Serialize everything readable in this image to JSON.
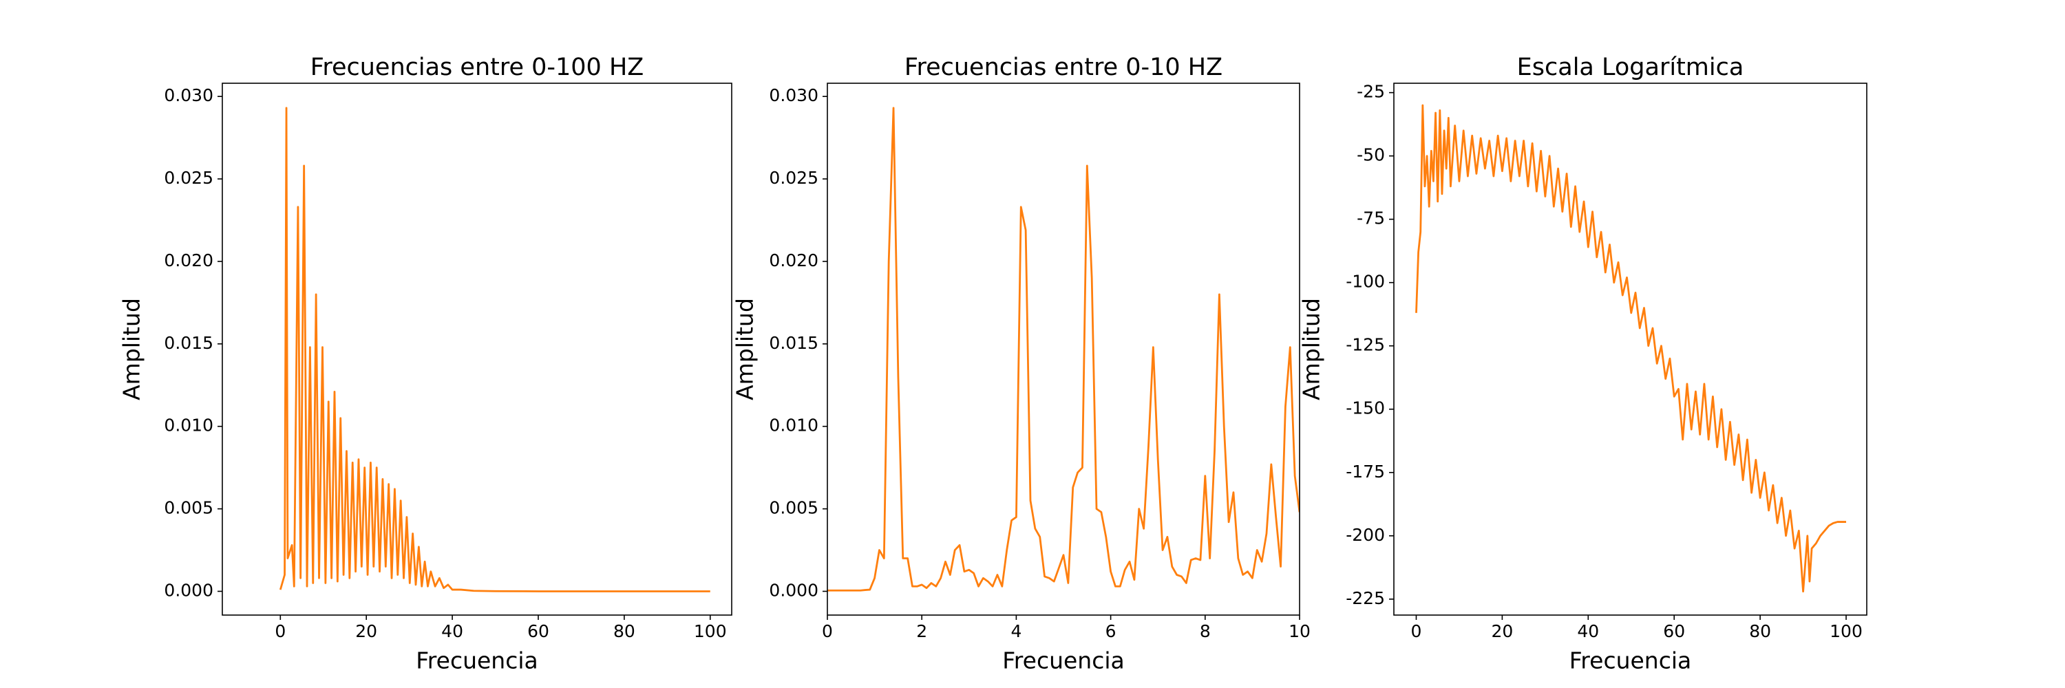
{
  "chart_data": [
    {
      "type": "line",
      "title": "Frecuencias entre 0-100 HZ",
      "x_label": "Frecuencia",
      "y_label": "Amplitud",
      "x": [
        0,
        1.0,
        1.4,
        1.7,
        2.7,
        3.2,
        4.1,
        4.7,
        5.5,
        6.2,
        6.9,
        7.6,
        8.3,
        9.0,
        9.8,
        10.5,
        11.2,
        11.9,
        12.6,
        13.3,
        14.0,
        14.7,
        15.4,
        16.1,
        16.8,
        17.5,
        18.2,
        18.9,
        19.6,
        20.3,
        21,
        21.7,
        22.4,
        23.1,
        23.8,
        24.5,
        25.2,
        25.9,
        26.6,
        27.3,
        28,
        28.7,
        29.4,
        30.1,
        30.8,
        31.5,
        32.2,
        32.9,
        33.6,
        34.3,
        35,
        36,
        37,
        38,
        39,
        40,
        42,
        45,
        50,
        60,
        80,
        100
      ],
      "series": [
        {
          "color": "#ff7f0e",
          "values": [
            0.0001,
            0.001,
            0.0293,
            0.002,
            0.0028,
            0.0003,
            0.0233,
            0.0008,
            0.0258,
            0.0003,
            0.0148,
            0.0005,
            0.018,
            0.0008,
            0.0148,
            0.0005,
            0.0115,
            0.0008,
            0.0121,
            0.0006,
            0.0105,
            0.001,
            0.0085,
            0.0008,
            0.0078,
            0.0012,
            0.008,
            0.0015,
            0.0075,
            0.001,
            0.0078,
            0.0015,
            0.0075,
            0.0012,
            0.0068,
            0.0015,
            0.0065,
            0.0008,
            0.0062,
            0.001,
            0.0055,
            0.0008,
            0.0045,
            0.0005,
            0.0035,
            0.0004,
            0.0027,
            0.0003,
            0.0018,
            0.0003,
            0.0012,
            0.0003,
            0.0008,
            0.0002,
            0.0004,
            0.0001,
            0.0001,
            3e-05,
            1e-05,
            0,
            0,
            0
          ]
        }
      ],
      "xlim": [
        -13.5,
        105
      ],
      "xticks": [
        0,
        20,
        40,
        60,
        80,
        100
      ],
      "ylim": [
        -0.00144,
        0.0308
      ],
      "yticks": [
        {
          "value": 0,
          "label": "0.000"
        },
        {
          "value": 0.005,
          "label": "0.005"
        },
        {
          "value": 0.01,
          "label": "0.010"
        },
        {
          "value": 0.015,
          "label": "0.015"
        },
        {
          "value": 0.02,
          "label": "0.020"
        },
        {
          "value": 0.025,
          "label": "0.025"
        },
        {
          "value": 0.03,
          "label": "0.030"
        }
      ]
    },
    {
      "type": "line",
      "title": "Frecuencias entre 0-10 HZ",
      "x_label": "Frecuencia",
      "y_label": "Amplitud",
      "x": [
        0,
        0.1,
        0.2,
        0.3,
        0.4,
        0.5,
        0.6,
        0.7,
        0.8,
        0.9,
        1.0,
        1.1,
        1.2,
        1.3,
        1.4,
        1.5,
        1.6,
        1.7,
        1.8,
        1.9,
        2.0,
        2.1,
        2.2,
        2.3,
        2.4,
        2.5,
        2.6,
        2.7,
        2.8,
        2.9,
        3.0,
        3.1,
        3.2,
        3.3,
        3.4,
        3.5,
        3.6,
        3.7,
        3.8,
        3.9,
        4.0,
        4.1,
        4.2,
        4.3,
        4.4,
        4.5,
        4.6,
        4.7,
        4.8,
        4.9,
        5.0,
        5.1,
        5.2,
        5.3,
        5.4,
        5.5,
        5.6,
        5.7,
        5.8,
        5.9,
        6.0,
        6.1,
        6.2,
        6.3,
        6.4,
        6.5,
        6.6,
        6.7,
        6.8,
        6.9,
        7.0,
        7.1,
        7.2,
        7.3,
        7.4,
        7.5,
        7.6,
        7.7,
        7.8,
        7.9,
        8.0,
        8.1,
        8.2,
        8.3,
        8.4,
        8.5,
        8.6,
        8.7,
        8.8,
        8.9,
        9.0,
        9.1,
        9.2,
        9.3,
        9.4,
        9.5,
        9.6,
        9.7,
        9.8,
        9.9,
        10.0
      ],
      "series": [
        {
          "color": "#ff7f0e",
          "values": [
            5e-05,
            5e-05,
            5e-05,
            5e-05,
            5e-05,
            5e-05,
            5e-05,
            5e-05,
            8e-05,
            0.0001,
            0.0008,
            0.0025,
            0.002,
            0.02,
            0.0293,
            0.013,
            0.002,
            0.002,
            0.0003,
            0.0003,
            0.0004,
            0.0002,
            0.0005,
            0.0003,
            0.0008,
            0.0018,
            0.001,
            0.0025,
            0.0028,
            0.0012,
            0.0013,
            0.0011,
            0.0003,
            0.0008,
            0.0006,
            0.0003,
            0.001,
            0.0003,
            0.0025,
            0.0043,
            0.0045,
            0.0233,
            0.0219,
            0.0055,
            0.0038,
            0.0033,
            0.0009,
            0.0008,
            0.0006,
            0.0014,
            0.0022,
            0.0005,
            0.0063,
            0.0072,
            0.0075,
            0.0258,
            0.019,
            0.005,
            0.0048,
            0.0033,
            0.0012,
            0.0003,
            0.0003,
            0.0013,
            0.0018,
            0.0007,
            0.005,
            0.0038,
            0.0088,
            0.0148,
            0.008,
            0.0025,
            0.0033,
            0.0015,
            0.001,
            0.0009,
            0.0005,
            0.0019,
            0.002,
            0.0019,
            0.007,
            0.002,
            0.0085,
            0.018,
            0.01,
            0.0042,
            0.006,
            0.002,
            0.001,
            0.0012,
            0.0008,
            0.0025,
            0.0018,
            0.0035,
            0.0077,
            0.0045,
            0.0015,
            0.0112,
            0.0148,
            0.007,
            0.0048
          ]
        }
      ],
      "xlim": [
        0,
        10
      ],
      "xticks": [
        0,
        2,
        4,
        6,
        8,
        10
      ],
      "ylim": [
        -0.00144,
        0.0308
      ],
      "yticks": [
        {
          "value": 0,
          "label": "0.000"
        },
        {
          "value": 0.005,
          "label": "0.005"
        },
        {
          "value": 0.01,
          "label": "0.010"
        },
        {
          "value": 0.015,
          "label": "0.015"
        },
        {
          "value": 0.02,
          "label": "0.020"
        },
        {
          "value": 0.025,
          "label": "0.025"
        },
        {
          "value": 0.03,
          "label": "0.030"
        }
      ]
    },
    {
      "type": "line",
      "title": "Escala Logarítmica",
      "x_label": "Frecuencia",
      "y_label": "Amplitud",
      "x": [
        0,
        0.5,
        1,
        1.5,
        2,
        2.5,
        3,
        3.5,
        4,
        4.5,
        5,
        5.5,
        6,
        6.5,
        7,
        7.5,
        8,
        9,
        10,
        11,
        12,
        13,
        14,
        15,
        16,
        17,
        18,
        19,
        20,
        21,
        22,
        23,
        24,
        25,
        26,
        27,
        28,
        29,
        30,
        31,
        32,
        33,
        34,
        35,
        36,
        37,
        38,
        39,
        40,
        41,
        42,
        43,
        44,
        45,
        46,
        47,
        48,
        49,
        50,
        51,
        52,
        53,
        54,
        55,
        56,
        57,
        58,
        59,
        60,
        61,
        62,
        63,
        64,
        65,
        66,
        67,
        68,
        69,
        70,
        71,
        72,
        73,
        74,
        75,
        76,
        77,
        78,
        79,
        80,
        81,
        82,
        83,
        84,
        85,
        86,
        87,
        88,
        89,
        90,
        91,
        91.5,
        92,
        93,
        94,
        95,
        96,
        97,
        98,
        100
      ],
      "series": [
        {
          "color": "#ff7f0e",
          "values": [
            -112,
            -88,
            -80,
            -30,
            -62,
            -50,
            -70,
            -48,
            -60,
            -33,
            -68,
            -32,
            -65,
            -40,
            -55,
            -35,
            -62,
            -38,
            -60,
            -40,
            -58,
            -42,
            -57,
            -43,
            -55,
            -44,
            -58,
            -42,
            -56,
            -43,
            -60,
            -44,
            -58,
            -44,
            -62,
            -45,
            -64,
            -48,
            -66,
            -50,
            -70,
            -55,
            -72,
            -57,
            -78,
            -62,
            -80,
            -68,
            -86,
            -72,
            -90,
            -80,
            -96,
            -85,
            -100,
            -92,
            -105,
            -98,
            -112,
            -104,
            -118,
            -110,
            -125,
            -118,
            -132,
            -125,
            -138,
            -130,
            -145,
            -142,
            -162,
            -140,
            -158,
            -143,
            -160,
            -140,
            -162,
            -145,
            -165,
            -150,
            -170,
            -155,
            -172,
            -160,
            -178,
            -162,
            -183,
            -170,
            -185,
            -175,
            -190,
            -180,
            -195,
            -185,
            -200,
            -190,
            -205,
            -198,
            -222,
            -200,
            -218,
            -205,
            -203,
            -200,
            -198,
            -196,
            -195,
            -194.5,
            -194.5
          ]
        }
      ],
      "xlim": [
        -5.2,
        104.8
      ],
      "xticks": [
        0,
        20,
        40,
        60,
        80,
        100
      ],
      "ylim": [
        -231.3,
        -21.3
      ],
      "yticks": [
        -25,
        -50,
        -75,
        -100,
        -125,
        -150,
        -175,
        -200,
        -225
      ]
    }
  ]
}
